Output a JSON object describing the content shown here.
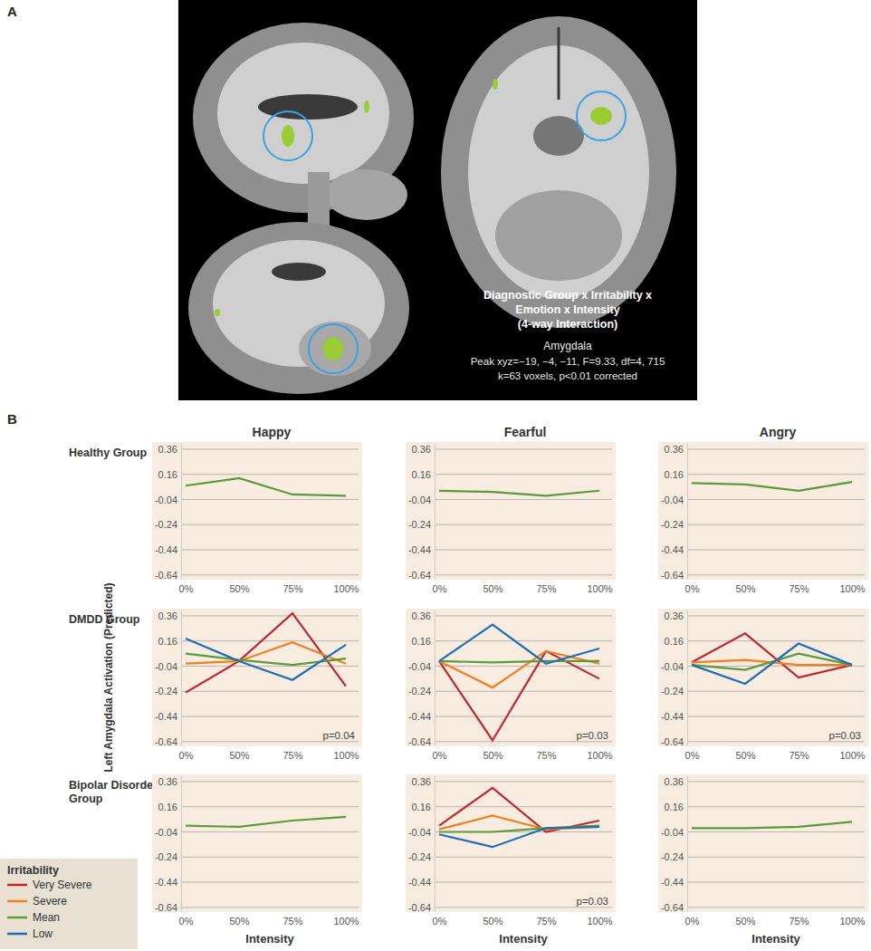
{
  "panel_a": {
    "label": "A",
    "title_lines": [
      "Diagnostic Group x Irritability x",
      "Emotion x Intensity",
      "(4-way Interaction)"
    ],
    "region": "Amygdala",
    "stats_lines": [
      "Peak xyz=−19, −4, −11, F=9.33, df=4, 715",
      "k=63 voxels, p<0.01 corrected"
    ]
  },
  "panel_b": {
    "label": "B",
    "column_titles": [
      "Happy",
      "Fearful",
      "Angry"
    ],
    "row_labels": [
      "Healthy Group",
      "DMDD Group",
      "Bipolar Disorder Group"
    ],
    "y_label": "Left Amygdala Activation (Predicted)",
    "legend_title": "Irritability"
  },
  "chart_data": [
    {
      "type": "line",
      "categories": [
        "0%",
        "50%",
        "75%",
        "100%"
      ],
      "ylim": [
        -0.67,
        0.41
      ],
      "yticks": [
        0.36,
        0.16,
        -0.04,
        -0.24,
        -0.44,
        -0.64
      ],
      "grid": true,
      "series": [
        {
          "name": "Mean",
          "color": "#5a9a3c",
          "values": [
            0.07,
            0.13,
            0.0,
            -0.01
          ]
        }
      ]
    },
    {
      "type": "line",
      "categories": [
        "0%",
        "50%",
        "75%",
        "100%"
      ],
      "ylim": [
        -0.67,
        0.41
      ],
      "yticks": [
        0.36,
        0.16,
        -0.04,
        -0.24,
        -0.44,
        -0.64
      ],
      "grid": true,
      "series": [
        {
          "name": "Mean",
          "color": "#5a9a3c",
          "values": [
            0.03,
            0.02,
            -0.01,
            0.03
          ]
        }
      ]
    },
    {
      "type": "line",
      "categories": [
        "0%",
        "50%",
        "75%",
        "100%"
      ],
      "ylim": [
        -0.67,
        0.41
      ],
      "yticks": [
        0.36,
        0.16,
        -0.04,
        -0.24,
        -0.44,
        -0.64
      ],
      "grid": true,
      "series": [
        {
          "name": "Mean",
          "color": "#5a9a3c",
          "values": [
            0.09,
            0.08,
            0.03,
            0.1
          ]
        }
      ]
    },
    {
      "type": "line",
      "categories": [
        "0%",
        "50%",
        "75%",
        "100%"
      ],
      "ylim": [
        -0.67,
        0.41
      ],
      "yticks": [
        0.36,
        0.16,
        -0.04,
        -0.24,
        -0.44,
        -0.64
      ],
      "grid": true,
      "annotation": "p=0.04",
      "series": [
        {
          "name": "Very Severe",
          "color": "#c1272d",
          "values": [
            -0.25,
            0.0,
            0.38,
            -0.2
          ]
        },
        {
          "name": "Severe",
          "color": "#f07f23",
          "values": [
            -0.02,
            0.0,
            0.15,
            -0.02
          ]
        },
        {
          "name": "Mean",
          "color": "#5a9a3c",
          "values": [
            0.06,
            0.01,
            -0.03,
            0.02
          ]
        },
        {
          "name": "Low",
          "color": "#1f6db5",
          "values": [
            0.18,
            0.0,
            -0.15,
            0.13
          ]
        }
      ]
    },
    {
      "type": "line",
      "categories": [
        "0%",
        "50%",
        "75%",
        "100%"
      ],
      "ylim": [
        -0.67,
        0.41
      ],
      "yticks": [
        0.36,
        0.16,
        -0.04,
        -0.24,
        -0.44,
        -0.64
      ],
      "grid": true,
      "annotation": "p=0.03",
      "series": [
        {
          "name": "Very Severe",
          "color": "#c1272d",
          "values": [
            0.0,
            -0.63,
            0.08,
            -0.14
          ]
        },
        {
          "name": "Severe",
          "color": "#f07f23",
          "values": [
            0.0,
            -0.21,
            0.08,
            -0.02
          ]
        },
        {
          "name": "Mean",
          "color": "#5a9a3c",
          "values": [
            0.0,
            -0.01,
            0.0,
            0.0
          ]
        },
        {
          "name": "Low",
          "color": "#1f6db5",
          "values": [
            0.0,
            0.29,
            -0.02,
            0.1
          ]
        }
      ]
    },
    {
      "type": "line",
      "categories": [
        "0%",
        "50%",
        "75%",
        "100%"
      ],
      "ylim": [
        -0.67,
        0.41
      ],
      "yticks": [
        0.36,
        0.16,
        -0.04,
        -0.24,
        -0.44,
        -0.64
      ],
      "grid": true,
      "annotation": "p=0.03",
      "series": [
        {
          "name": "Very Severe",
          "color": "#c1272d",
          "values": [
            -0.01,
            0.22,
            -0.13,
            -0.03
          ]
        },
        {
          "name": "Severe",
          "color": "#f07f23",
          "values": [
            -0.01,
            0.01,
            -0.03,
            -0.03
          ]
        },
        {
          "name": "Mean",
          "color": "#5a9a3c",
          "values": [
            -0.03,
            -0.07,
            0.06,
            -0.03
          ]
        },
        {
          "name": "Low",
          "color": "#1f6db5",
          "values": [
            -0.03,
            -0.18,
            0.14,
            -0.03
          ]
        }
      ]
    },
    {
      "type": "line",
      "categories": [
        "0%",
        "50%",
        "75%",
        "100%"
      ],
      "ylim": [
        -0.67,
        0.41
      ],
      "yticks": [
        0.36,
        0.16,
        -0.04,
        -0.24,
        -0.44,
        -0.64
      ],
      "grid": true,
      "x_label": "Intensity",
      "series": [
        {
          "name": "Mean",
          "color": "#5a9a3c",
          "values": [
            0.01,
            0.0,
            0.05,
            0.08
          ]
        }
      ]
    },
    {
      "type": "line",
      "categories": [
        "0%",
        "50%",
        "75%",
        "100%"
      ],
      "ylim": [
        -0.67,
        0.41
      ],
      "yticks": [
        0.36,
        0.16,
        -0.04,
        -0.24,
        -0.44,
        -0.64
      ],
      "grid": true,
      "x_label": "Intensity",
      "annotation": "p=0.03",
      "series": [
        {
          "name": "Very Severe",
          "color": "#c1272d",
          "values": [
            0.01,
            0.31,
            -0.04,
            0.05
          ]
        },
        {
          "name": "Severe",
          "color": "#f07f23",
          "values": [
            -0.02,
            0.09,
            -0.02,
            0.0
          ]
        },
        {
          "name": "Mean",
          "color": "#5a9a3c",
          "values": [
            -0.04,
            -0.04,
            -0.01,
            0.01
          ]
        },
        {
          "name": "Low",
          "color": "#1f6db5",
          "values": [
            -0.06,
            -0.16,
            -0.01,
            0.0
          ]
        }
      ]
    },
    {
      "type": "line",
      "categories": [
        "0%",
        "50%",
        "75%",
        "100%"
      ],
      "ylim": [
        -0.67,
        0.41
      ],
      "yticks": [
        0.36,
        0.16,
        -0.04,
        -0.24,
        -0.44,
        -0.64
      ],
      "grid": true,
      "x_label": "Intensity",
      "series": [
        {
          "name": "Mean",
          "color": "#5a9a3c",
          "values": [
            -0.01,
            -0.01,
            0.0,
            0.04
          ]
        }
      ]
    }
  ]
}
